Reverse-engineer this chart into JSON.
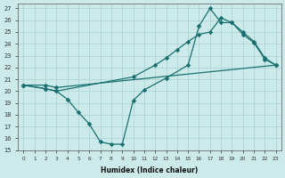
{
  "xlabel": "Humidex (Indice chaleur)",
  "bg_color": "#cceaea",
  "grid_color": "#aed4d4",
  "line_color": "#1a7070",
  "xlim": [
    -0.5,
    23.5
  ],
  "ylim": [
    15,
    27.4
  ],
  "yticks": [
    15,
    16,
    17,
    18,
    19,
    20,
    21,
    22,
    23,
    24,
    25,
    26,
    27
  ],
  "xticks": [
    0,
    1,
    2,
    3,
    4,
    5,
    6,
    7,
    8,
    9,
    10,
    11,
    12,
    13,
    14,
    15,
    16,
    17,
    18,
    19,
    20,
    21,
    22,
    23
  ],
  "line1_x": [
    0,
    2,
    3,
    23
  ],
  "line1_y": [
    20.5,
    20.5,
    20.3,
    22.2
  ],
  "line2_x": [
    0,
    2,
    3,
    4,
    5,
    6,
    7,
    8,
    9,
    10,
    11,
    13,
    15,
    16,
    17,
    18,
    19,
    20,
    21,
    22,
    23
  ],
  "line2_y": [
    20.5,
    20.2,
    20.0,
    19.3,
    18.2,
    17.2,
    15.7,
    15.5,
    15.5,
    19.2,
    20.1,
    21.1,
    22.2,
    25.5,
    27.0,
    25.8,
    25.8,
    24.8,
    24.1,
    22.7,
    22.2
  ],
  "line3_x": [
    0,
    2,
    3,
    10,
    12,
    13,
    14,
    15,
    16,
    17,
    18,
    19,
    20,
    21,
    22,
    23
  ],
  "line3_y": [
    20.5,
    20.2,
    20.0,
    21.2,
    22.2,
    22.8,
    23.5,
    24.2,
    24.8,
    25.0,
    26.2,
    25.8,
    25.0,
    24.2,
    22.8,
    22.2
  ]
}
